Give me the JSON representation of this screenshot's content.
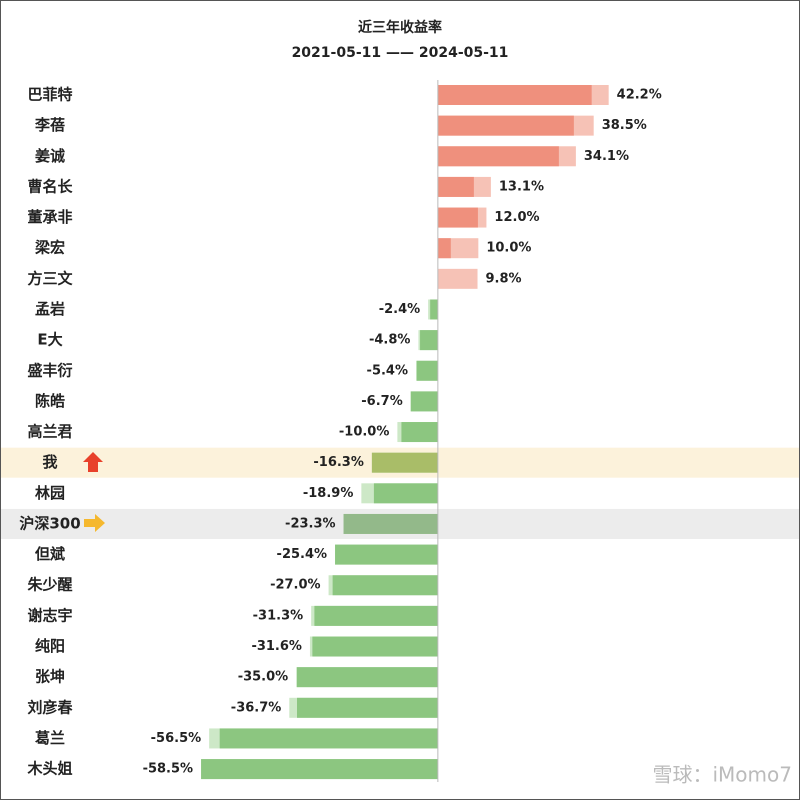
{
  "chart_data": {
    "type": "bar",
    "orientation": "horizontal",
    "title": "近三年收益率",
    "subtitle": "2021-05-11 —— 2024-05-11",
    "categories": [
      "巴菲特",
      "李蓓",
      "姜诚",
      "曹名长",
      "董承非",
      "梁宏",
      "方三文",
      "孟岩",
      "E大",
      "盛丰衍",
      "陈皓",
      "高兰君",
      "我",
      "林园",
      "沪深300",
      "但斌",
      "朱少醒",
      "谢志宇",
      "纯阳",
      "张坤",
      "刘彦春",
      "葛兰",
      "木头姐"
    ],
    "series": [
      {
        "values": [
          42.2,
          38.5,
          34.1,
          13.1,
          12.0,
          10.0,
          9.8,
          -2.4,
          -4.8,
          -5.4,
          -6.7,
          -10.0,
          -16.3,
          -18.9,
          -23.3,
          -25.4,
          -27.0,
          -31.3,
          -31.6,
          -35.0,
          -36.7,
          -56.5,
          -58.5
        ],
        "value_labels": [
          "42.2%",
          "38.5%",
          "34.1%",
          "13.1%",
          "12.0%",
          "10.0%",
          "9.8%",
          "-2.4%",
          "-4.8%",
          "-5.4%",
          "-6.7%",
          "-10.0%",
          "-16.3%",
          "-18.9%",
          "-23.3%",
          "-25.4%",
          "-27.0%",
          "-31.3%",
          "-31.6%",
          "-35.0%",
          "-36.7%",
          "-56.5%",
          "-58.5%"
        ],
        "colors": [
          "#f6c2b6",
          "#f6c2b6",
          "#f6c2b6",
          "#f6c2b6",
          "#f6c2b6",
          "#f6c2b6",
          "#f6c2b6",
          "#cde8c7",
          "#cde8c7",
          "#cde8c7",
          "#cde8c7",
          "#cde8c7",
          "#cde8c7",
          "#cde8c7",
          "#cde8c7",
          "#cde8c7",
          "#cde8c7",
          "#cde8c7",
          "#cde8c7",
          "#cde8c7",
          "#cde8c7",
          "#cde8c7",
          "#cde8c7"
        ]
      },
      {
        "values": [
          38.0,
          33.6,
          29.9,
          8.9,
          9.9,
          3.2,
          0,
          -1.9,
          -4.4,
          -5.2,
          -6.7,
          -9.0,
          -16.3,
          -15.8,
          -23.3,
          -25.4,
          -26.0,
          -30.5,
          -31.0,
          -34.8,
          -34.8,
          -53.9,
          -58.5
        ],
        "colors": [
          "#ef907d",
          "#ef907d",
          "#ef907d",
          "#ef907d",
          "#ef907d",
          "#ef907d",
          "#ef907d",
          "#8cc680",
          "#8cc680",
          "#8cc680",
          "#8cc680",
          "#8cc680",
          "#a9bd68",
          "#8cc680",
          "#93b98a",
          "#8cc680",
          "#8cc680",
          "#8cc680",
          "#8cc680",
          "#8cc680",
          "#8cc680",
          "#8cc680",
          "#8cc680"
        ]
      }
    ],
    "row_background": [
      null,
      null,
      null,
      null,
      null,
      null,
      null,
      null,
      null,
      null,
      null,
      null,
      "#fcf2db",
      null,
      "#ececec",
      null,
      null,
      null,
      null,
      null,
      null,
      null,
      null
    ],
    "xlim": [
      -60,
      45
    ],
    "watermark": "雪球：iMomo7"
  }
}
